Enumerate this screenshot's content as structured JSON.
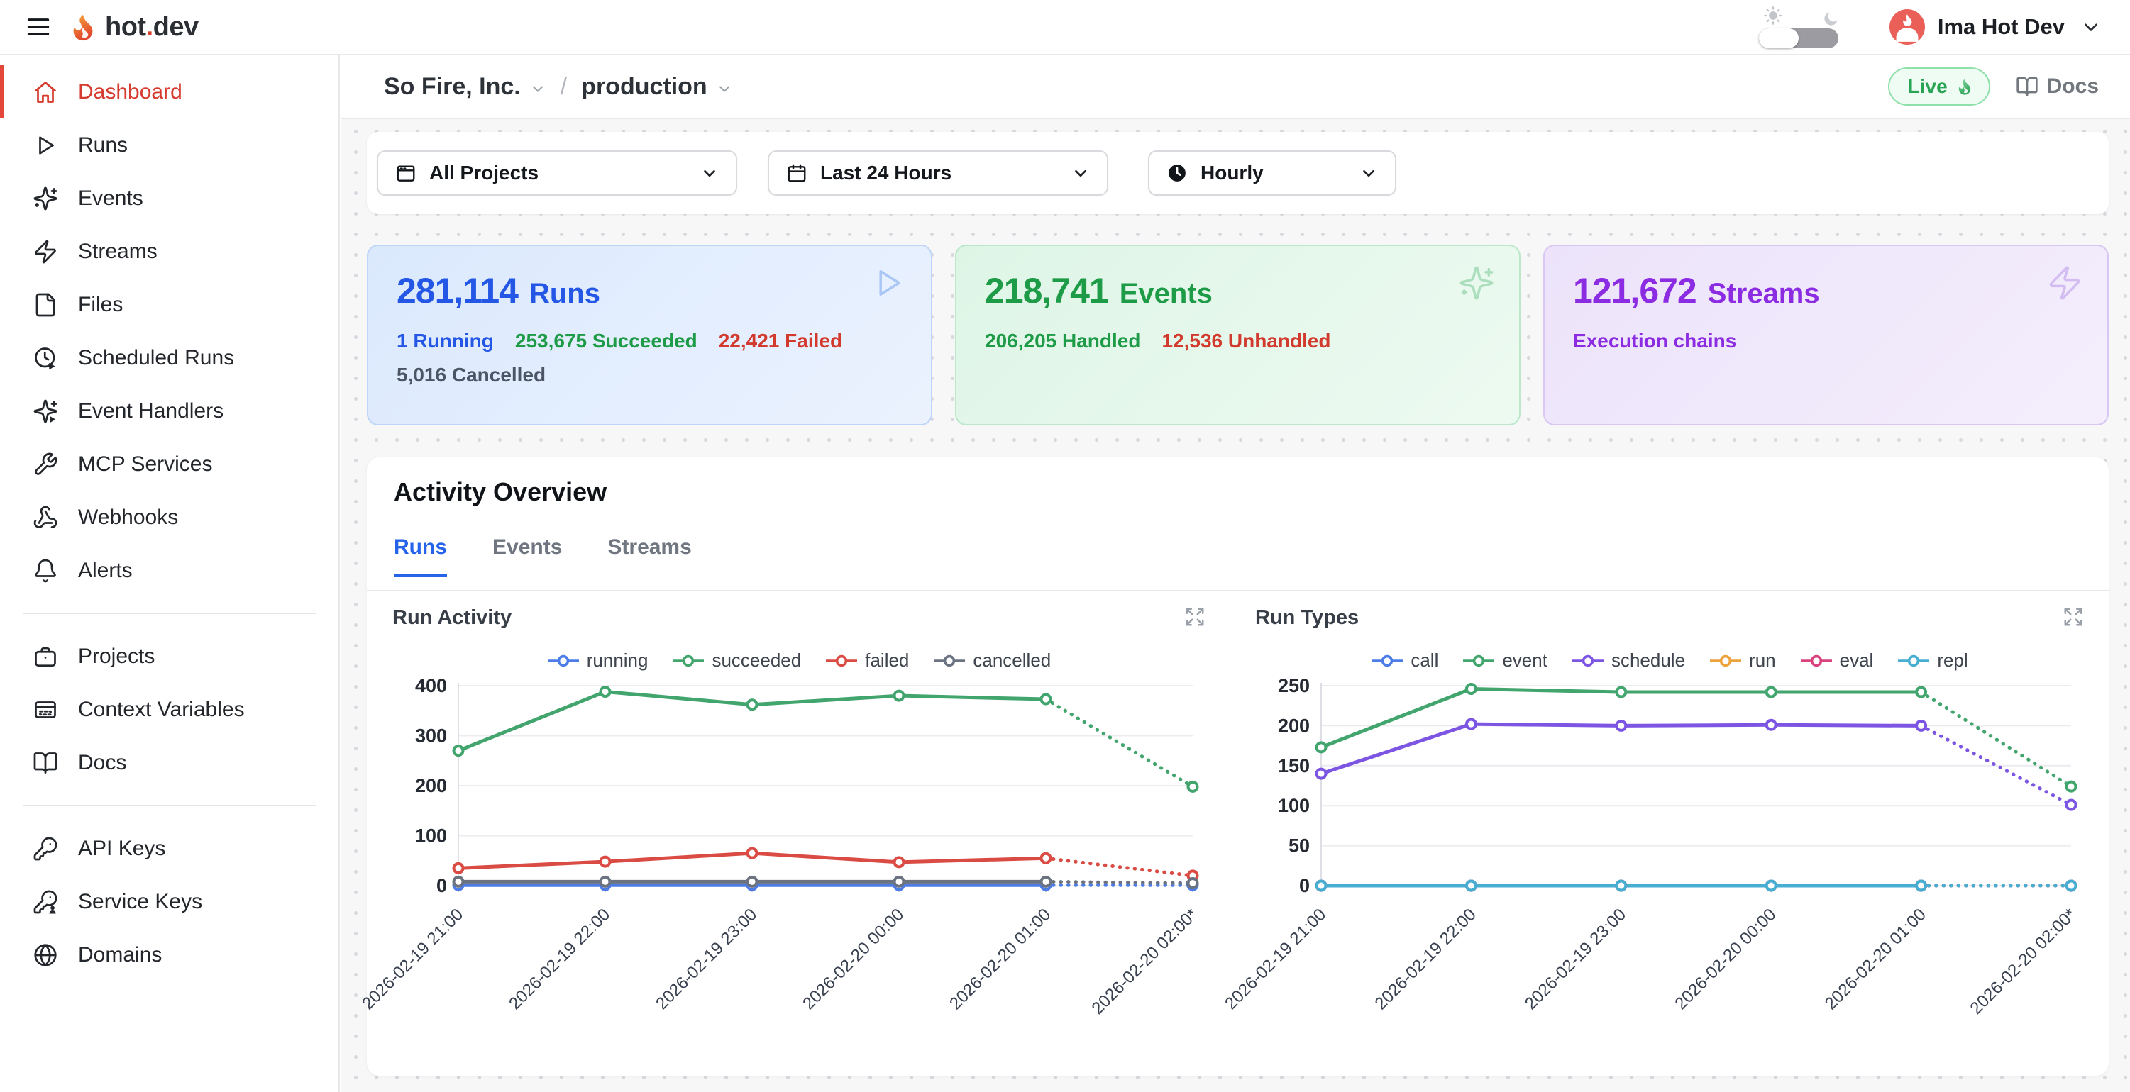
{
  "topbar": {
    "brand_prefix": "hot",
    "brand_dot": ".",
    "brand_suffix": "dev",
    "user_name": "Ima Hot Dev"
  },
  "breadcrumb": {
    "org": "So Fire, Inc.",
    "separator": "/",
    "env": "production",
    "live_label": "Live",
    "docs_label": "Docs"
  },
  "filters": {
    "project": {
      "label": "All Projects",
      "icon": "window-icon"
    },
    "range": {
      "label": "Last 24 Hours",
      "icon": "calendar-icon"
    },
    "granularity": {
      "label": "Hourly",
      "icon": "clock-filled-icon"
    }
  },
  "sidebar": {
    "groups": [
      {
        "items": [
          {
            "label": "Dashboard",
            "icon": "home-icon",
            "active": true
          },
          {
            "label": "Runs",
            "icon": "play-icon"
          },
          {
            "label": "Events",
            "icon": "sparkles-icon"
          },
          {
            "label": "Streams",
            "icon": "bolt-icon"
          },
          {
            "label": "Files",
            "icon": "file-icon"
          },
          {
            "label": "Scheduled Runs",
            "icon": "clock-play-icon"
          },
          {
            "label": "Event Handlers",
            "icon": "sparkles-play-icon"
          },
          {
            "label": "MCP Services",
            "icon": "wrench-icon"
          },
          {
            "label": "Webhooks",
            "icon": "webhook-icon"
          },
          {
            "label": "Alerts",
            "icon": "bell-icon"
          }
        ]
      },
      {
        "items": [
          {
            "label": "Projects",
            "icon": "briefcase-icon"
          },
          {
            "label": "Context Variables",
            "icon": "context-box-icon"
          },
          {
            "label": "Docs",
            "icon": "book-icon"
          }
        ]
      },
      {
        "items": [
          {
            "label": "API Keys",
            "icon": "key-icon"
          },
          {
            "label": "Service Keys",
            "icon": "key-person-icon"
          },
          {
            "label": "Domains",
            "icon": "globe-icon"
          }
        ]
      }
    ]
  },
  "stat_cards": [
    {
      "value": "281,114",
      "unit": "Runs",
      "icon": "play-icon",
      "accent": "#2457e5",
      "icon_color": "#a9c6f5",
      "bg_from": "#dbe9fd",
      "bg_to": "#ebf2fe",
      "border": "#bed4f8",
      "lines": [
        [
          {
            "text": "1 Running",
            "color": "#2457e5"
          },
          {
            "text": "253,675 Succeeded",
            "color": "#1d9b47"
          },
          {
            "text": "22,421 Failed",
            "color": "#d23a2e"
          }
        ],
        [
          {
            "text": "5,016 Cancelled",
            "color": "#4b5563"
          }
        ]
      ]
    },
    {
      "value": "218,741",
      "unit": "Events",
      "icon": "sparkles-icon",
      "accent": "#1d9b47",
      "icon_color": "#abdebd",
      "bg_from": "#def5e6",
      "bg_to": "#edfaf1",
      "border": "#bae8c9",
      "lines": [
        [
          {
            "text": "206,205 Handled",
            "color": "#1d9b47"
          },
          {
            "text": "12,536 Unhandled",
            "color": "#d23a2e"
          }
        ]
      ]
    },
    {
      "value": "121,672",
      "unit": "Streams",
      "icon": "bolt-icon",
      "accent": "#8b2be2",
      "icon_color": "#d2bcf2",
      "bg_from": "#ece3fa",
      "bg_to": "#f4eefc",
      "border": "#d8c6f4",
      "lines": [
        [
          {
            "text": "Execution chains",
            "color": "#8b2be2"
          }
        ]
      ]
    }
  ],
  "activity": {
    "title": "Activity Overview",
    "tabs": [
      "Runs",
      "Events",
      "Streams"
    ],
    "active_tab": 0
  },
  "chart_data": [
    {
      "type": "line",
      "title": "Run Activity",
      "categories": [
        "2026-02-19 21:00",
        "2026-02-19 22:00",
        "2026-02-19 23:00",
        "2026-02-20 00:00",
        "2026-02-20 01:00",
        "2026-02-20 02:00*"
      ],
      "series": [
        {
          "name": "running",
          "color": "#4b7ce8",
          "values": [
            1,
            1,
            1,
            1,
            1,
            1
          ]
        },
        {
          "name": "succeeded",
          "color": "#41a56d",
          "values": [
            270,
            388,
            362,
            380,
            373,
            198
          ]
        },
        {
          "name": "failed",
          "color": "#da4b44",
          "values": [
            35,
            48,
            65,
            47,
            55,
            20
          ]
        },
        {
          "name": "cancelled",
          "color": "#6b7280",
          "values": [
            8,
            8,
            8,
            8,
            8,
            5
          ]
        }
      ],
      "ylim": [
        0,
        400
      ],
      "yticks": [
        0,
        100,
        200,
        300,
        400
      ],
      "grid": true,
      "legend_position": "top",
      "last_segment_dotted": true
    },
    {
      "type": "line",
      "title": "Run Types",
      "categories": [
        "2026-02-19 21:00",
        "2026-02-19 22:00",
        "2026-02-19 23:00",
        "2026-02-20 00:00",
        "2026-02-20 01:00",
        "2026-02-20 02:00*"
      ],
      "series": [
        {
          "name": "call",
          "color": "#4b7ce8",
          "values": [
            0,
            0,
            0,
            0,
            0,
            0
          ]
        },
        {
          "name": "event",
          "color": "#41a56d",
          "values": [
            173,
            246,
            242,
            242,
            242,
            124
          ]
        },
        {
          "name": "schedule",
          "color": "#7d55e3",
          "values": [
            140,
            202,
            200,
            201,
            200,
            101
          ]
        },
        {
          "name": "run",
          "color": "#eda33b",
          "values": [
            0,
            0,
            0,
            0,
            0,
            0
          ]
        },
        {
          "name": "eval",
          "color": "#d8437e",
          "values": [
            0,
            0,
            0,
            0,
            0,
            0
          ]
        },
        {
          "name": "repl",
          "color": "#47aed2",
          "values": [
            0,
            0,
            0,
            0,
            0,
            0
          ]
        }
      ],
      "ylim": [
        0,
        250
      ],
      "yticks": [
        0,
        50,
        100,
        150,
        200,
        250
      ],
      "grid": true,
      "legend_position": "top",
      "last_segment_dotted": true
    }
  ],
  "colors": {
    "accent_red": "#d63b2f",
    "tab_blue": "#2563eb",
    "live_green": "#29a455",
    "logo_orange_top": "#f6a93b",
    "logo_orange_bottom": "#e1452c"
  }
}
